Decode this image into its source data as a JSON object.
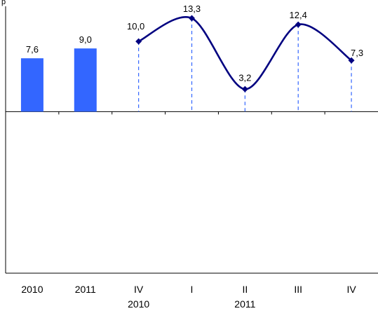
{
  "top_mark": "p",
  "chart_data": {
    "type": "bar",
    "colors": {
      "bar": "#3366FF",
      "line": "#000080",
      "drop": "#3366FF",
      "axis": "#000000"
    },
    "grid": false,
    "categories": [
      {
        "label": "2010",
        "sub": ""
      },
      {
        "label": "2011",
        "sub": ""
      },
      {
        "label": "IV",
        "sub": "2010"
      },
      {
        "label": "I",
        "sub": ""
      },
      {
        "label": "II",
        "sub": "2011"
      },
      {
        "label": "III",
        "sub": ""
      },
      {
        "label": "IV",
        "sub": ""
      }
    ],
    "bars": [
      {
        "category_index": 0,
        "value": 7.6,
        "label": "7,6"
      },
      {
        "category_index": 1,
        "value": 9.0,
        "label": "9,0"
      }
    ],
    "line": [
      {
        "category_index": 2,
        "value": 10.0,
        "label": "10,0"
      },
      {
        "category_index": 3,
        "value": 13.3,
        "label": "13,3"
      },
      {
        "category_index": 4,
        "value": 3.2,
        "label": "3,2"
      },
      {
        "category_index": 5,
        "value": 12.4,
        "label": "12,4"
      },
      {
        "category_index": 6,
        "value": 7.3,
        "label": "7,3"
      }
    ],
    "ylim": [
      -23,
      15
    ],
    "zero_line": true
  }
}
